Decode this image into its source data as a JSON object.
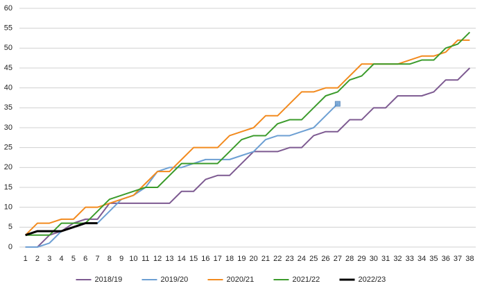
{
  "chart_data": {
    "type": "line",
    "categories": [
      1,
      2,
      3,
      4,
      5,
      6,
      7,
      8,
      9,
      10,
      11,
      12,
      13,
      14,
      15,
      16,
      17,
      18,
      19,
      20,
      21,
      22,
      23,
      24,
      25,
      26,
      27,
      28,
      29,
      30,
      31,
      32,
      33,
      34,
      35,
      36,
      37,
      38
    ],
    "ylim": [
      0,
      60
    ],
    "yticks": [
      0,
      5,
      10,
      15,
      20,
      25,
      30,
      35,
      40,
      45,
      50,
      55,
      60
    ],
    "grid": true,
    "legend": "bottom",
    "series": [
      {
        "name": "2018/19",
        "color": "#7d5a91",
        "values": [
          0,
          0,
          3,
          4,
          6,
          7,
          7,
          11,
          11,
          11,
          11,
          11,
          11,
          14,
          14,
          17,
          18,
          18,
          21,
          24,
          24,
          24,
          25,
          25,
          28,
          29,
          29,
          32,
          32,
          35,
          35,
          38,
          38,
          38,
          39,
          42,
          42,
          45
        ]
      },
      {
        "name": "2019/20",
        "color": "#6c9fd3",
        "end_marker": true,
        "values": [
          0,
          0,
          1,
          4,
          5,
          6,
          6,
          9,
          12,
          13,
          15,
          19,
          20,
          20,
          21,
          22,
          22,
          22,
          23,
          24,
          27,
          28,
          28,
          29,
          30,
          33,
          36,
          null,
          null,
          null,
          null,
          null,
          null,
          null,
          null,
          null,
          null,
          null
        ]
      },
      {
        "name": "2020/21",
        "color": "#f28a1e",
        "values": [
          3,
          6,
          6,
          7,
          7,
          10,
          10,
          11,
          12,
          13,
          16,
          19,
          19,
          22,
          25,
          25,
          25,
          28,
          29,
          30,
          33,
          33,
          36,
          39,
          39,
          40,
          40,
          43,
          46,
          46,
          46,
          46,
          47,
          48,
          48,
          49,
          52,
          52
        ]
      },
      {
        "name": "2021/22",
        "color": "#3b9b2b",
        "values": [
          3,
          3,
          3,
          6,
          6,
          6,
          9,
          12,
          13,
          14,
          15,
          15,
          18,
          21,
          21,
          21,
          21,
          24,
          27,
          28,
          28,
          31,
          32,
          32,
          35,
          38,
          39,
          42,
          43,
          46,
          46,
          46,
          46,
          47,
          47,
          50,
          51,
          54
        ]
      },
      {
        "name": "2022/23",
        "color": "#000000",
        "width": 3,
        "values": [
          3,
          4,
          4,
          4,
          5,
          6,
          6,
          null,
          null,
          null,
          null,
          null,
          null,
          null,
          null,
          null,
          null,
          null,
          null,
          null,
          null,
          null,
          null,
          null,
          null,
          null,
          null,
          null,
          null,
          null,
          null,
          null,
          null,
          null,
          null,
          null,
          null,
          null
        ]
      }
    ]
  }
}
